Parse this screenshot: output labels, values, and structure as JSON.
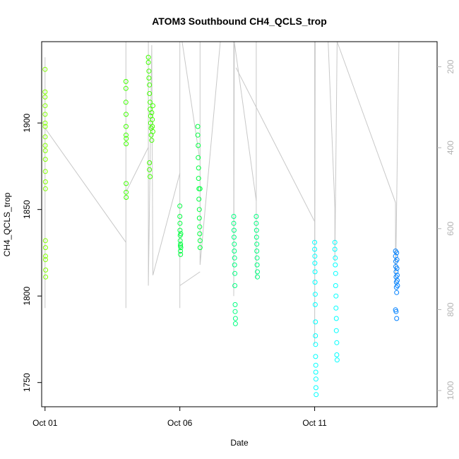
{
  "chart_data": {
    "type": "scatter",
    "title": "ATOM3 Southbound CH4_QCLS_trop",
    "xlabel": "Date",
    "ylabel": "CH4_QCLS_trop",
    "x_axis": {
      "type": "date",
      "range": [
        "2017-09-30T21:00",
        "2017-10-15T13:00"
      ],
      "ticks": [
        {
          "label": "Oct 01",
          "value": "2017-10-01T00:00"
        },
        {
          "label": "Oct 06",
          "value": "2017-10-06T00:00"
        },
        {
          "label": "Oct 11",
          "value": "2017-10-11T00:00"
        }
      ]
    },
    "y_axis": {
      "range": [
        1736,
        1947
      ],
      "ticks": [
        1750,
        1800,
        1850,
        1900
      ]
    },
    "y2_axis": {
      "label": "",
      "color": "#b3b3b3",
      "reversed": true,
      "range": [
        1040,
        138
      ],
      "ticks": [
        200,
        400,
        600,
        800,
        1000
      ]
    },
    "grid": false,
    "legend": "none",
    "colors": {
      "profile_line": "#c8c8c8",
      "flight_1": "#80ff00",
      "flight_2": "#40ff00",
      "flight_3": "#00ff40",
      "flight_4": "#00ff80",
      "flight_5": "#00ffff",
      "flight_6": "#0080ff"
    },
    "series": [
      {
        "color": "#80ff00",
        "points": [
          [
            "2017-10-01T00:00",
            1931
          ],
          [
            "2017-10-01T00:00",
            1918
          ],
          [
            "2017-10-01T00:00",
            1915
          ],
          [
            "2017-10-01T00:05",
            1910
          ],
          [
            "2017-10-01T00:05",
            1905
          ],
          [
            "2017-10-01T00:05",
            1900
          ],
          [
            "2017-10-01T00:10",
            1898
          ],
          [
            "2017-10-01T00:10",
            1892
          ],
          [
            "2017-10-01T00:10",
            1887
          ],
          [
            "2017-10-01T00:15",
            1884
          ],
          [
            "2017-10-01T00:15",
            1879
          ],
          [
            "2017-10-01T00:15",
            1872
          ],
          [
            "2017-10-01T00:20",
            1866
          ],
          [
            "2017-10-01T00:20",
            1862
          ],
          [
            "2017-10-01T00:20",
            1832
          ],
          [
            "2017-10-01T00:25",
            1828
          ],
          [
            "2017-10-01T00:25",
            1823
          ],
          [
            "2017-10-01T00:25",
            1821
          ],
          [
            "2017-10-01T00:30",
            1815
          ],
          [
            "2017-10-01T00:30",
            1811
          ]
        ]
      },
      {
        "color": "#40ff00",
        "points": [
          [
            "2017-10-04T00:00",
            1924
          ],
          [
            "2017-10-04T00:00",
            1920
          ],
          [
            "2017-10-04T00:00",
            1912
          ],
          [
            "2017-10-04T00:05",
            1905
          ],
          [
            "2017-10-04T00:05",
            1898
          ],
          [
            "2017-10-04T00:05",
            1893
          ],
          [
            "2017-10-04T00:10",
            1888
          ],
          [
            "2017-10-04T00:10",
            1865
          ],
          [
            "2017-10-04T00:10",
            1860
          ],
          [
            "2017-10-04T00:15",
            1857
          ],
          [
            "2017-10-04T00:15",
            1891
          ],
          [
            "2017-10-04T20:00",
            1938
          ],
          [
            "2017-10-04T20:00",
            1935
          ],
          [
            "2017-10-04T20:30",
            1930
          ],
          [
            "2017-10-04T20:30",
            1926
          ],
          [
            "2017-10-04T21:00",
            1922
          ],
          [
            "2017-10-04T21:00",
            1917
          ],
          [
            "2017-10-04T21:30",
            1912
          ],
          [
            "2017-10-04T21:30",
            1908
          ],
          [
            "2017-10-04T22:00",
            1904
          ],
          [
            "2017-10-04T22:00",
            1900
          ],
          [
            "2017-10-04T22:30",
            1897
          ],
          [
            "2017-10-04T22:30",
            1893
          ],
          [
            "2017-10-04T23:00",
            1890
          ],
          [
            "2017-10-04T23:00",
            1906
          ],
          [
            "2017-10-04T23:30",
            1902
          ],
          [
            "2017-10-04T23:30",
            1898
          ],
          [
            "2017-10-05T00:00",
            1895
          ],
          [
            "2017-10-05T00:00",
            1910
          ],
          [
            "2017-10-04T21:00",
            1877
          ],
          [
            "2017-10-04T21:00",
            1873
          ],
          [
            "2017-10-04T21:30",
            1869
          ]
        ]
      },
      {
        "color": "#00ff40",
        "points": [
          [
            "2017-10-06T00:00",
            1852
          ],
          [
            "2017-10-06T00:00",
            1846
          ],
          [
            "2017-10-06T00:10",
            1842
          ],
          [
            "2017-10-06T00:10",
            1838
          ],
          [
            "2017-10-06T00:20",
            1835
          ],
          [
            "2017-10-06T00:20",
            1832
          ],
          [
            "2017-10-06T00:30",
            1829
          ],
          [
            "2017-10-06T00:30",
            1826
          ],
          [
            "2017-10-06T00:40",
            1824
          ],
          [
            "2017-10-06T00:40",
            1830
          ],
          [
            "2017-10-06T00:50",
            1836
          ],
          [
            "2017-10-06T00:50",
            1828
          ],
          [
            "2017-10-06T16:00",
            1898
          ],
          [
            "2017-10-06T16:00",
            1893
          ],
          [
            "2017-10-06T16:20",
            1887
          ],
          [
            "2017-10-06T16:20",
            1880
          ],
          [
            "2017-10-06T16:40",
            1874
          ],
          [
            "2017-10-06T16:40",
            1868
          ],
          [
            "2017-10-06T17:00",
            1862
          ],
          [
            "2017-10-06T17:00",
            1856
          ],
          [
            "2017-10-06T17:20",
            1850
          ],
          [
            "2017-10-06T17:20",
            1845
          ],
          [
            "2017-10-06T17:40",
            1840
          ],
          [
            "2017-10-06T17:40",
            1836
          ],
          [
            "2017-10-06T18:00",
            1832
          ],
          [
            "2017-10-06T18:00",
            1828
          ],
          [
            "2017-10-06T18:00",
            1862
          ]
        ]
      },
      {
        "color": "#00ff80",
        "points": [
          [
            "2017-10-08T00:00",
            1846
          ],
          [
            "2017-10-08T00:00",
            1842
          ],
          [
            "2017-10-08T00:15",
            1838
          ],
          [
            "2017-10-08T00:15",
            1834
          ],
          [
            "2017-10-08T00:30",
            1830
          ],
          [
            "2017-10-08T00:30",
            1826
          ],
          [
            "2017-10-08T00:45",
            1822
          ],
          [
            "2017-10-08T00:45",
            1818
          ],
          [
            "2017-10-08T01:00",
            1813
          ],
          [
            "2017-10-08T01:00",
            1806
          ],
          [
            "2017-10-08T01:15",
            1795
          ],
          [
            "2017-10-08T01:15",
            1791
          ],
          [
            "2017-10-08T01:30",
            1787
          ],
          [
            "2017-10-08T01:30",
            1784
          ],
          [
            "2017-10-08T20:00",
            1846
          ],
          [
            "2017-10-08T20:00",
            1842
          ],
          [
            "2017-10-08T20:15",
            1838
          ],
          [
            "2017-10-08T20:15",
            1834
          ],
          [
            "2017-10-08T20:30",
            1830
          ],
          [
            "2017-10-08T20:30",
            1826
          ],
          [
            "2017-10-08T20:45",
            1822
          ],
          [
            "2017-10-08T20:45",
            1818
          ],
          [
            "2017-10-08T21:00",
            1814
          ],
          [
            "2017-10-08T21:00",
            1811
          ]
        ]
      },
      {
        "color": "#00ffff",
        "points": [
          [
            "2017-10-11T00:00",
            1831
          ],
          [
            "2017-10-11T00:00",
            1827
          ],
          [
            "2017-10-11T00:10",
            1823
          ],
          [
            "2017-10-11T00:10",
            1819
          ],
          [
            "2017-10-11T00:20",
            1814
          ],
          [
            "2017-10-11T00:20",
            1808
          ],
          [
            "2017-10-11T00:30",
            1801
          ],
          [
            "2017-10-11T00:30",
            1795
          ],
          [
            "2017-10-11T00:40",
            1785
          ],
          [
            "2017-10-11T00:40",
            1777
          ],
          [
            "2017-10-11T00:50",
            1772
          ],
          [
            "2017-10-11T00:50",
            1765
          ],
          [
            "2017-10-11T01:00",
            1760
          ],
          [
            "2017-10-11T01:00",
            1756
          ],
          [
            "2017-10-11T01:10",
            1752
          ],
          [
            "2017-10-11T01:10",
            1747
          ],
          [
            "2017-10-11T01:20",
            1743
          ],
          [
            "2017-10-11T18:00",
            1831
          ],
          [
            "2017-10-11T18:00",
            1827
          ],
          [
            "2017-10-11T18:20",
            1822
          ],
          [
            "2017-10-11T18:20",
            1818
          ],
          [
            "2017-10-11T18:40",
            1813
          ],
          [
            "2017-10-11T18:40",
            1806
          ],
          [
            "2017-10-11T19:00",
            1800
          ],
          [
            "2017-10-11T19:00",
            1793
          ],
          [
            "2017-10-11T19:20",
            1787
          ],
          [
            "2017-10-11T19:20",
            1780
          ],
          [
            "2017-10-11T19:40",
            1773
          ],
          [
            "2017-10-11T19:40",
            1766
          ],
          [
            "2017-10-11T20:00",
            1763
          ]
        ]
      },
      {
        "color": "#0080ff",
        "points": [
          [
            "2017-10-14T00:00",
            1826
          ],
          [
            "2017-10-14T00:00",
            1823
          ],
          [
            "2017-10-14T00:15",
            1820
          ],
          [
            "2017-10-14T00:15",
            1817
          ],
          [
            "2017-10-14T00:30",
            1814
          ],
          [
            "2017-10-14T00:30",
            1811
          ],
          [
            "2017-10-14T00:45",
            1808
          ],
          [
            "2017-10-14T00:45",
            1805
          ],
          [
            "2017-10-14T01:00",
            1802
          ],
          [
            "2017-10-14T01:00",
            1825
          ],
          [
            "2017-10-14T01:15",
            1821
          ],
          [
            "2017-10-14T01:15",
            1816
          ],
          [
            "2017-10-14T01:30",
            1812
          ],
          [
            "2017-10-14T01:30",
            1809
          ],
          [
            "2017-10-14T01:45",
            1806
          ],
          [
            "2017-10-14T00:00",
            1792
          ],
          [
            "2017-10-14T00:30",
            1791
          ],
          [
            "2017-10-14T01:00",
            1787
          ]
        ]
      }
    ],
    "profile_segments": [
      [
        [
          "2017-10-01T00:00",
          1938
        ],
        [
          "2017-10-01T00:00",
          1793
        ],
        [
          "2017-10-01T00:00",
          1897
        ],
        [
          "2017-10-04T00:00",
          1831
        ]
      ],
      [
        [
          "2017-10-04T00:00",
          1950
        ],
        [
          "2017-10-04T00:00",
          1793
        ],
        [
          "2017-10-04T00:00",
          1860
        ],
        [
          "2017-10-04T20:00",
          1886
        ]
      ],
      [
        [
          "2017-10-04T20:00",
          1950
        ],
        [
          "2017-10-04T20:00",
          1806
        ],
        [
          "2017-10-04T23:00",
          1945
        ],
        [
          "2017-10-05T00:00",
          1812
        ],
        [
          "2017-10-06T00:00",
          1871
        ]
      ],
      [
        [
          "2017-10-06T00:00",
          1950
        ],
        [
          "2017-10-06T00:00",
          1793
        ],
        [
          "2017-10-06T00:00",
          1806
        ],
        [
          "2017-10-06T18:00",
          1814
        ]
      ],
      [
        [
          "2017-10-06T02:00",
          1950
        ],
        [
          "2017-10-06T18:00",
          1878
        ]
      ],
      [
        [
          "2017-10-06T18:00",
          1950
        ],
        [
          "2017-10-06T18:00",
          1818
        ],
        [
          "2017-10-07T12:00",
          1950
        ]
      ],
      [
        [
          "2017-10-08T00:00",
          1950
        ],
        [
          "2017-10-08T00:00",
          1800
        ],
        [
          "2017-10-08T00:30",
          1950
        ],
        [
          "2017-10-08T20:00",
          1855
        ]
      ],
      [
        [
          "2017-10-08T02:00",
          1932
        ],
        [
          "2017-10-11T00:00",
          1843
        ]
      ],
      [
        [
          "2017-10-08T20:00",
          1950
        ],
        [
          "2017-10-08T20:00",
          1810
        ]
      ],
      [
        [
          "2017-10-11T00:00",
          1950
        ],
        [
          "2017-10-11T00:00",
          1772
        ],
        [
          "2017-10-11T00:30",
          1950
        ]
      ],
      [
        [
          "2017-10-11T12:00",
          1950
        ],
        [
          "2017-10-11T18:00",
          1851
        ],
        [
          "2017-10-11T18:00",
          1820
        ],
        [
          "2017-10-11T20:00",
          1950
        ]
      ],
      [
        [
          "2017-10-11T20:00",
          1950
        ],
        [
          "2017-10-14T00:00",
          1854
        ],
        [
          "2017-10-14T00:00",
          1806
        ],
        [
          "2017-10-14T03:00",
          1950
        ]
      ]
    ]
  }
}
